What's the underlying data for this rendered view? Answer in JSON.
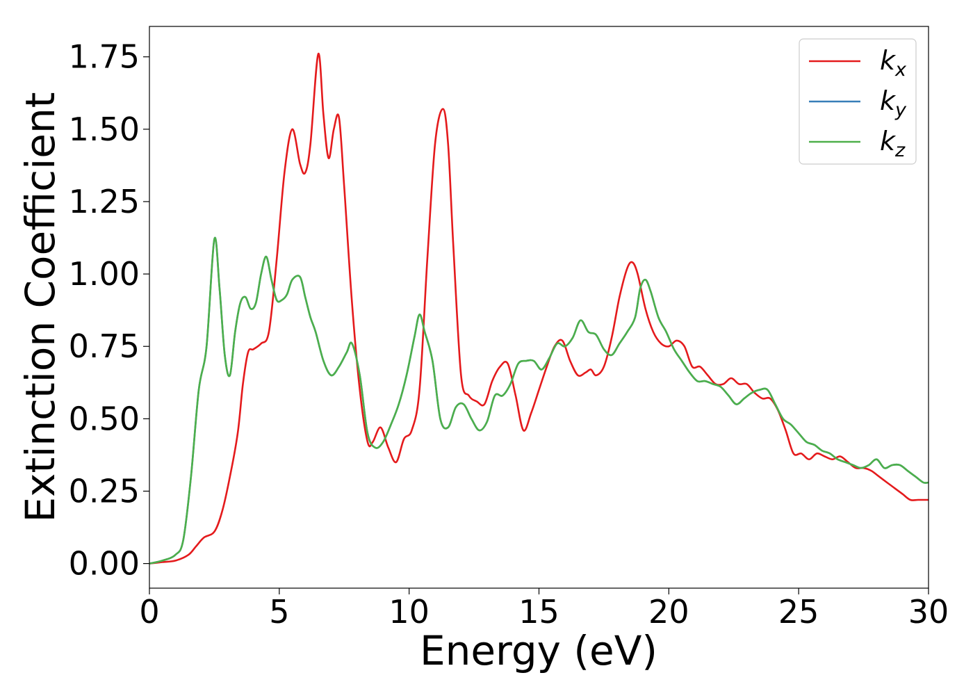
{
  "chart_data": {
    "type": "line",
    "title": "",
    "xlabel": "Energy (eV)",
    "ylabel": "Extinction Coefficient",
    "xlim": [
      0,
      30
    ],
    "ylim": [
      -0.085,
      1.855
    ],
    "xticks": [
      0,
      5,
      10,
      15,
      20,
      25,
      30
    ],
    "xtick_labels": [
      "0",
      "5",
      "10",
      "15",
      "20",
      "25",
      "30"
    ],
    "yticks": [
      0.0,
      0.25,
      0.5,
      0.75,
      1.0,
      1.25,
      1.5,
      1.75
    ],
    "ytick_labels": [
      "0.00",
      "0.25",
      "0.50",
      "0.75",
      "1.00",
      "1.25",
      "1.50",
      "1.75"
    ],
    "grid": false,
    "legend_position": "top-right",
    "series": [
      {
        "name": "k_x",
        "legend_main": "k",
        "legend_sub": "x",
        "color": "#e41a1c",
        "x": [
          0,
          0.5,
          1.0,
          1.5,
          1.8,
          2.1,
          2.5,
          2.8,
          3.1,
          3.4,
          3.6,
          3.8,
          4.0,
          4.3,
          4.6,
          4.9,
          5.2,
          5.5,
          5.8,
          6.0,
          6.2,
          6.5,
          6.7,
          6.9,
          7.1,
          7.3,
          7.5,
          7.8,
          8.1,
          8.4,
          8.6,
          8.9,
          9.2,
          9.5,
          9.8,
          10.1,
          10.4,
          10.7,
          11.0,
          11.3,
          11.5,
          11.7,
          12.0,
          12.3,
          12.6,
          12.9,
          13.2,
          13.5,
          13.8,
          14.1,
          14.4,
          14.7,
          15.0,
          15.3,
          15.6,
          15.9,
          16.2,
          16.5,
          16.8,
          17.0,
          17.2,
          17.5,
          17.8,
          18.1,
          18.4,
          18.6,
          18.8,
          19.1,
          19.4,
          19.7,
          20.0,
          20.3,
          20.6,
          20.9,
          21.2,
          21.5,
          21.8,
          22.1,
          22.4,
          22.7,
          23.0,
          23.3,
          23.6,
          23.9,
          24.2,
          24.5,
          24.8,
          25.1,
          25.4,
          25.7,
          26.0,
          26.3,
          26.6,
          26.9,
          27.2,
          27.5,
          27.8,
          28.1,
          28.4,
          28.7,
          29.0,
          29.3,
          29.6,
          30.0
        ],
        "y": [
          0.0,
          0.005,
          0.01,
          0.03,
          0.06,
          0.09,
          0.11,
          0.18,
          0.3,
          0.45,
          0.62,
          0.73,
          0.74,
          0.76,
          0.8,
          1.05,
          1.35,
          1.5,
          1.38,
          1.35,
          1.45,
          1.76,
          1.55,
          1.4,
          1.5,
          1.54,
          1.3,
          0.9,
          0.6,
          0.42,
          0.42,
          0.47,
          0.4,
          0.35,
          0.43,
          0.46,
          0.6,
          1.05,
          1.45,
          1.57,
          1.45,
          1.1,
          0.65,
          0.58,
          0.56,
          0.55,
          0.63,
          0.68,
          0.69,
          0.58,
          0.46,
          0.52,
          0.6,
          0.68,
          0.75,
          0.77,
          0.7,
          0.65,
          0.66,
          0.67,
          0.65,
          0.68,
          0.78,
          0.92,
          1.02,
          1.04,
          1.0,
          0.88,
          0.8,
          0.76,
          0.75,
          0.77,
          0.75,
          0.68,
          0.68,
          0.65,
          0.62,
          0.62,
          0.64,
          0.62,
          0.62,
          0.59,
          0.57,
          0.57,
          0.53,
          0.46,
          0.38,
          0.38,
          0.36,
          0.38,
          0.37,
          0.36,
          0.37,
          0.35,
          0.33,
          0.33,
          0.32,
          0.3,
          0.28,
          0.26,
          0.24,
          0.22,
          0.22,
          0.22
        ]
      },
      {
        "name": "k_y",
        "legend_main": "k",
        "legend_sub": "y",
        "color": "#377eb8",
        "x": [
          0,
          0.5,
          1.0,
          1.3,
          1.6,
          1.9,
          2.2,
          2.5,
          2.7,
          2.9,
          3.1,
          3.3,
          3.5,
          3.7,
          3.9,
          4.1,
          4.3,
          4.5,
          4.7,
          4.9,
          5.1,
          5.3,
          5.5,
          5.8,
          6.0,
          6.2,
          6.4,
          6.7,
          7.0,
          7.3,
          7.6,
          7.8,
          8.1,
          8.4,
          8.7,
          9.0,
          9.3,
          9.6,
          9.9,
          10.2,
          10.4,
          10.6,
          10.9,
          11.2,
          11.5,
          11.8,
          12.1,
          12.4,
          12.7,
          13.0,
          13.3,
          13.6,
          13.9,
          14.2,
          14.5,
          14.8,
          15.1,
          15.4,
          15.7,
          16.0,
          16.3,
          16.6,
          16.9,
          17.2,
          17.5,
          17.8,
          18.1,
          18.4,
          18.7,
          18.9,
          19.1,
          19.3,
          19.6,
          19.9,
          20.2,
          20.5,
          20.8,
          21.1,
          21.4,
          21.7,
          22.0,
          22.3,
          22.6,
          22.9,
          23.2,
          23.5,
          23.8,
          24.1,
          24.4,
          24.7,
          25.0,
          25.3,
          25.6,
          25.9,
          26.2,
          26.5,
          26.8,
          27.1,
          27.4,
          27.7,
          28.0,
          28.3,
          28.6,
          28.9,
          29.2,
          29.5,
          29.8,
          30.0
        ],
        "y": [
          0.0,
          0.01,
          0.03,
          0.08,
          0.3,
          0.6,
          0.75,
          1.12,
          0.95,
          0.72,
          0.65,
          0.8,
          0.9,
          0.92,
          0.88,
          0.9,
          1.0,
          1.06,
          0.98,
          0.91,
          0.91,
          0.93,
          0.98,
          0.99,
          0.92,
          0.85,
          0.8,
          0.7,
          0.65,
          0.68,
          0.73,
          0.76,
          0.65,
          0.45,
          0.4,
          0.42,
          0.48,
          0.55,
          0.65,
          0.78,
          0.86,
          0.8,
          0.7,
          0.5,
          0.47,
          0.54,
          0.55,
          0.5,
          0.46,
          0.49,
          0.58,
          0.58,
          0.62,
          0.69,
          0.7,
          0.7,
          0.67,
          0.71,
          0.76,
          0.75,
          0.78,
          0.84,
          0.8,
          0.79,
          0.74,
          0.72,
          0.76,
          0.8,
          0.85,
          0.95,
          0.98,
          0.94,
          0.85,
          0.8,
          0.74,
          0.7,
          0.66,
          0.63,
          0.63,
          0.62,
          0.61,
          0.58,
          0.55,
          0.57,
          0.59,
          0.6,
          0.6,
          0.55,
          0.5,
          0.48,
          0.45,
          0.42,
          0.41,
          0.39,
          0.38,
          0.36,
          0.35,
          0.34,
          0.33,
          0.34,
          0.36,
          0.33,
          0.34,
          0.34,
          0.32,
          0.3,
          0.28,
          0.28
        ]
      },
      {
        "name": "k_z",
        "legend_main": "k",
        "legend_sub": "z",
        "color": "#4daf4a",
        "x": [
          0,
          0.5,
          1.0,
          1.3,
          1.6,
          1.9,
          2.2,
          2.5,
          2.7,
          2.9,
          3.1,
          3.3,
          3.5,
          3.7,
          3.9,
          4.1,
          4.3,
          4.5,
          4.7,
          4.9,
          5.1,
          5.3,
          5.5,
          5.8,
          6.0,
          6.2,
          6.4,
          6.7,
          7.0,
          7.3,
          7.6,
          7.8,
          8.1,
          8.4,
          8.7,
          9.0,
          9.3,
          9.6,
          9.9,
          10.2,
          10.4,
          10.6,
          10.9,
          11.2,
          11.5,
          11.8,
          12.1,
          12.4,
          12.7,
          13.0,
          13.3,
          13.6,
          13.9,
          14.2,
          14.5,
          14.8,
          15.1,
          15.4,
          15.7,
          16.0,
          16.3,
          16.6,
          16.9,
          17.2,
          17.5,
          17.8,
          18.1,
          18.4,
          18.7,
          18.9,
          19.1,
          19.3,
          19.6,
          19.9,
          20.2,
          20.5,
          20.8,
          21.1,
          21.4,
          21.7,
          22.0,
          22.3,
          22.6,
          22.9,
          23.2,
          23.5,
          23.8,
          24.1,
          24.4,
          24.7,
          25.0,
          25.3,
          25.6,
          25.9,
          26.2,
          26.5,
          26.8,
          27.1,
          27.4,
          27.7,
          28.0,
          28.3,
          28.6,
          28.9,
          29.2,
          29.5,
          29.8,
          30.0
        ],
        "y": [
          0.0,
          0.01,
          0.03,
          0.08,
          0.3,
          0.6,
          0.75,
          1.12,
          0.95,
          0.72,
          0.65,
          0.8,
          0.9,
          0.92,
          0.88,
          0.9,
          1.0,
          1.06,
          0.98,
          0.91,
          0.91,
          0.93,
          0.98,
          0.99,
          0.92,
          0.85,
          0.8,
          0.7,
          0.65,
          0.68,
          0.73,
          0.76,
          0.65,
          0.45,
          0.4,
          0.42,
          0.48,
          0.55,
          0.65,
          0.78,
          0.86,
          0.8,
          0.7,
          0.5,
          0.47,
          0.54,
          0.55,
          0.5,
          0.46,
          0.49,
          0.58,
          0.58,
          0.62,
          0.69,
          0.7,
          0.7,
          0.67,
          0.71,
          0.76,
          0.75,
          0.78,
          0.84,
          0.8,
          0.79,
          0.74,
          0.72,
          0.76,
          0.8,
          0.85,
          0.95,
          0.98,
          0.94,
          0.85,
          0.8,
          0.74,
          0.7,
          0.66,
          0.63,
          0.63,
          0.62,
          0.61,
          0.58,
          0.55,
          0.57,
          0.59,
          0.6,
          0.6,
          0.55,
          0.5,
          0.48,
          0.45,
          0.42,
          0.41,
          0.39,
          0.38,
          0.36,
          0.35,
          0.34,
          0.33,
          0.34,
          0.36,
          0.33,
          0.34,
          0.34,
          0.32,
          0.3,
          0.28,
          0.28
        ]
      }
    ]
  }
}
